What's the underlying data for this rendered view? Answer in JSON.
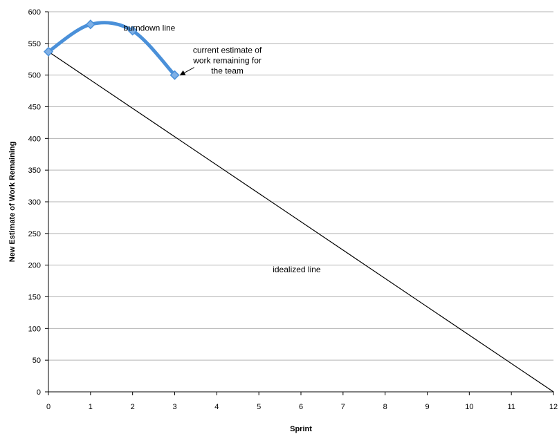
{
  "chart_data": {
    "type": "line",
    "title": "",
    "xlabel": "Sprint",
    "ylabel": "New Estimate of Work Remaining",
    "xlim": [
      0,
      12
    ],
    "ylim": [
      0,
      600
    ],
    "x_ticks": [
      0,
      1,
      2,
      3,
      4,
      5,
      6,
      7,
      8,
      9,
      10,
      11,
      12
    ],
    "y_ticks": [
      0,
      50,
      100,
      150,
      200,
      250,
      300,
      350,
      400,
      450,
      500,
      550,
      600
    ],
    "grid": "horizontal",
    "series": [
      {
        "label": "burndown line",
        "color": "#4a90d9",
        "smooth": true,
        "markers": "diamond",
        "points": [
          {
            "x": 0,
            "y": 537
          },
          {
            "x": 1,
            "y": 580
          },
          {
            "x": 2,
            "y": 570
          },
          {
            "x": 3,
            "y": 500
          }
        ]
      },
      {
        "label": "idealized line",
        "color": "#000000",
        "smooth": false,
        "markers": "none",
        "points": [
          {
            "x": 0,
            "y": 537
          },
          {
            "x": 12,
            "y": 0
          }
        ]
      }
    ],
    "annotations": [
      {
        "id": "burndown",
        "lines": [
          "burndown line"
        ],
        "anchor_x": 2.4,
        "anchor_y": 570
      },
      {
        "id": "current",
        "lines": [
          "current estimate of",
          "work remaining for",
          "the team"
        ],
        "anchor_x": 4.25,
        "anchor_y": 535,
        "arrow_to": {
          "x": 3,
          "y": 500
        }
      },
      {
        "id": "idealized",
        "lines": [
          "idealized line"
        ],
        "anchor_x": 5.9,
        "anchor_y": 189
      }
    ]
  }
}
